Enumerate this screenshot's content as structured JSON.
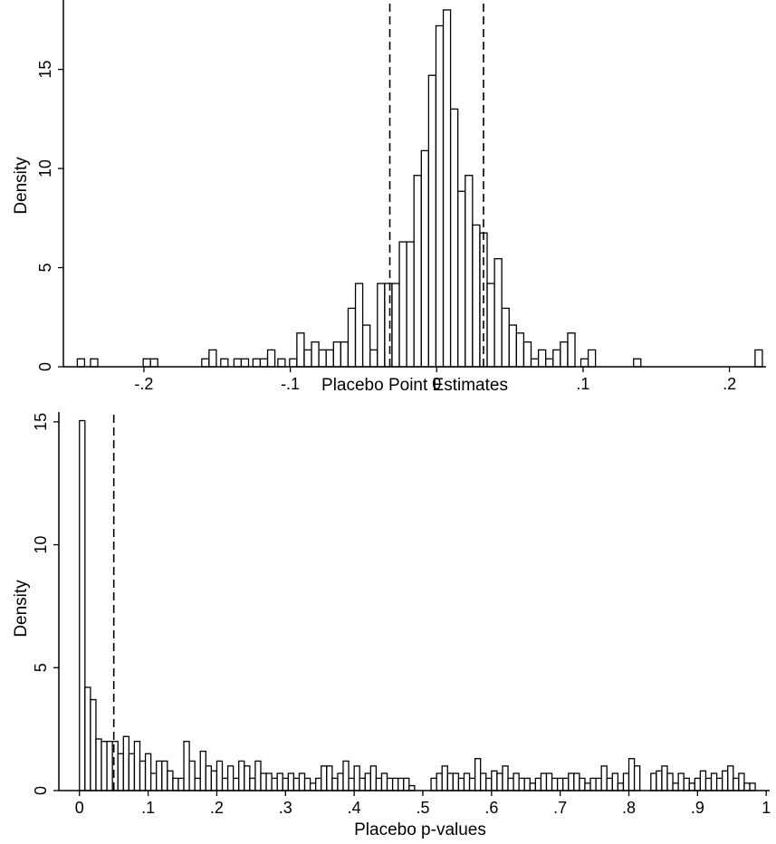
{
  "chart_data": [
    {
      "type": "bar",
      "subtype": "histogram",
      "title": "",
      "xlabel": "Placebo Point Estimates",
      "ylabel": "Density",
      "xlim": [
        -0.255,
        0.225
      ],
      "ylim": [
        0,
        18.5
      ],
      "xticks": [
        -0.2,
        -0.1,
        0,
        0.1,
        0.2
      ],
      "xtick_labels": [
        "-.2",
        "-.1",
        "0",
        ".1",
        ".2"
      ],
      "yticks": [
        0,
        5,
        10,
        15
      ],
      "ytick_labels": [
        "0",
        "5",
        "10",
        "15"
      ],
      "bin_width": 0.00497,
      "vlines": [
        -0.032,
        0.032
      ],
      "grid": false,
      "legend": "none",
      "bins": [
        {
          "x": -0.243,
          "y": 0.4
        },
        {
          "x": -0.234,
          "y": 0.4
        },
        {
          "x": -0.198,
          "y": 0.4
        },
        {
          "x": -0.193,
          "y": 0.4
        },
        {
          "x": -0.158,
          "y": 0.4
        },
        {
          "x": -0.153,
          "y": 0.85
        },
        {
          "x": -0.145,
          "y": 0.4
        },
        {
          "x": -0.136,
          "y": 0.4
        },
        {
          "x": -0.131,
          "y": 0.4
        },
        {
          "x": -0.123,
          "y": 0.4
        },
        {
          "x": -0.118,
          "y": 0.4
        },
        {
          "x": -0.113,
          "y": 0.85
        },
        {
          "x": -0.106,
          "y": 0.4
        },
        {
          "x": -0.098,
          "y": 0.4
        },
        {
          "x": -0.093,
          "y": 1.7
        },
        {
          "x": -0.088,
          "y": 0.85
        },
        {
          "x": -0.083,
          "y": 1.25
        },
        {
          "x": -0.078,
          "y": 0.85
        },
        {
          "x": -0.073,
          "y": 0.85
        },
        {
          "x": -0.068,
          "y": 1.25
        },
        {
          "x": -0.063,
          "y": 1.25
        },
        {
          "x": -0.058,
          "y": 2.95
        },
        {
          "x": -0.053,
          "y": 4.2
        },
        {
          "x": -0.048,
          "y": 2.1
        },
        {
          "x": -0.043,
          "y": 0.85
        },
        {
          "x": -0.038,
          "y": 4.2
        },
        {
          "x": -0.033,
          "y": 4.2
        },
        {
          "x": -0.028,
          "y": 4.2
        },
        {
          "x": -0.023,
          "y": 6.3
        },
        {
          "x": -0.018,
          "y": 6.3
        },
        {
          "x": -0.013,
          "y": 9.65
        },
        {
          "x": -0.008,
          "y": 10.9
        },
        {
          "x": -0.003,
          "y": 14.7
        },
        {
          "x": 0.002,
          "y": 17.2
        },
        {
          "x": 0.007,
          "y": 18.0
        },
        {
          "x": 0.012,
          "y": 13.0
        },
        {
          "x": 0.017,
          "y": 8.85
        },
        {
          "x": 0.022,
          "y": 9.65
        },
        {
          "x": 0.027,
          "y": 7.15
        },
        {
          "x": 0.032,
          "y": 6.75
        },
        {
          "x": 0.037,
          "y": 4.2
        },
        {
          "x": 0.042,
          "y": 5.45
        },
        {
          "x": 0.047,
          "y": 2.95
        },
        {
          "x": 0.052,
          "y": 2.1
        },
        {
          "x": 0.057,
          "y": 1.7
        },
        {
          "x": 0.062,
          "y": 1.25
        },
        {
          "x": 0.067,
          "y": 0.4
        },
        {
          "x": 0.072,
          "y": 0.85
        },
        {
          "x": 0.077,
          "y": 0.4
        },
        {
          "x": 0.082,
          "y": 0.85
        },
        {
          "x": 0.087,
          "y": 1.25
        },
        {
          "x": 0.092,
          "y": 1.7
        },
        {
          "x": 0.101,
          "y": 0.4
        },
        {
          "x": 0.106,
          "y": 0.85
        },
        {
          "x": 0.137,
          "y": 0.4
        },
        {
          "x": 0.22,
          "y": 0.85
        }
      ]
    },
    {
      "type": "bar",
      "subtype": "histogram",
      "title": "",
      "xlabel": "Placebo p-values",
      "ylabel": "Density",
      "xlim": [
        -0.03,
        1.005
      ],
      "ylim": [
        0,
        15.4
      ],
      "xticks": [
        0,
        0.1,
        0.2,
        0.3,
        0.4,
        0.5,
        0.6,
        0.7,
        0.8,
        0.9,
        1
      ],
      "xtick_labels": [
        "0",
        ".1",
        ".2",
        ".3",
        ".4",
        ".5",
        ".6",
        ".7",
        ".8",
        ".9",
        "1"
      ],
      "yticks": [
        0,
        5,
        10,
        15
      ],
      "ytick_labels": [
        "0",
        "5",
        "10",
        "15"
      ],
      "bin_width": 0.00799,
      "vlines": [
        0.05
      ],
      "grid": false,
      "legend": "none",
      "bins": [
        {
          "x": 0.004,
          "y": 15.05
        },
        {
          "x": 0.012,
          "y": 4.2
        },
        {
          "x": 0.02,
          "y": 3.7
        },
        {
          "x": 0.028,
          "y": 2.1
        },
        {
          "x": 0.036,
          "y": 2.0
        },
        {
          "x": 0.044,
          "y": 2.0
        },
        {
          "x": 0.052,
          "y": 2.0
        },
        {
          "x": 0.06,
          "y": 1.5
        },
        {
          "x": 0.068,
          "y": 2.2
        },
        {
          "x": 0.076,
          "y": 1.5
        },
        {
          "x": 0.084,
          "y": 2.0
        },
        {
          "x": 0.092,
          "y": 1.2
        },
        {
          "x": 0.1,
          "y": 1.5
        },
        {
          "x": 0.108,
          "y": 0.7
        },
        {
          "x": 0.116,
          "y": 1.2
        },
        {
          "x": 0.124,
          "y": 1.2
        },
        {
          "x": 0.132,
          "y": 0.8
        },
        {
          "x": 0.14,
          "y": 0.5
        },
        {
          "x": 0.148,
          "y": 0.5
        },
        {
          "x": 0.156,
          "y": 2.0
        },
        {
          "x": 0.164,
          "y": 1.2
        },
        {
          "x": 0.172,
          "y": 0.5
        },
        {
          "x": 0.18,
          "y": 1.6
        },
        {
          "x": 0.188,
          "y": 1.0
        },
        {
          "x": 0.196,
          "y": 0.8
        },
        {
          "x": 0.204,
          "y": 1.2
        },
        {
          "x": 0.212,
          "y": 0.5
        },
        {
          "x": 0.22,
          "y": 1.0
        },
        {
          "x": 0.228,
          "y": 0.5
        },
        {
          "x": 0.236,
          "y": 1.2
        },
        {
          "x": 0.244,
          "y": 1.0
        },
        {
          "x": 0.252,
          "y": 0.5
        },
        {
          "x": 0.26,
          "y": 1.2
        },
        {
          "x": 0.268,
          "y": 0.7
        },
        {
          "x": 0.276,
          "y": 0.7
        },
        {
          "x": 0.284,
          "y": 0.5
        },
        {
          "x": 0.292,
          "y": 0.7
        },
        {
          "x": 0.3,
          "y": 0.5
        },
        {
          "x": 0.308,
          "y": 0.7
        },
        {
          "x": 0.316,
          "y": 0.5
        },
        {
          "x": 0.324,
          "y": 0.7
        },
        {
          "x": 0.332,
          "y": 0.5
        },
        {
          "x": 0.34,
          "y": 0.3
        },
        {
          "x": 0.348,
          "y": 0.5
        },
        {
          "x": 0.356,
          "y": 1.0
        },
        {
          "x": 0.364,
          "y": 1.0
        },
        {
          "x": 0.372,
          "y": 0.5
        },
        {
          "x": 0.38,
          "y": 0.7
        },
        {
          "x": 0.388,
          "y": 1.2
        },
        {
          "x": 0.396,
          "y": 0.5
        },
        {
          "x": 0.404,
          "y": 1.0
        },
        {
          "x": 0.412,
          "y": 0.5
        },
        {
          "x": 0.42,
          "y": 0.7
        },
        {
          "x": 0.428,
          "y": 1.0
        },
        {
          "x": 0.436,
          "y": 0.5
        },
        {
          "x": 0.444,
          "y": 0.7
        },
        {
          "x": 0.452,
          "y": 0.5
        },
        {
          "x": 0.46,
          "y": 0.5
        },
        {
          "x": 0.468,
          "y": 0.5
        },
        {
          "x": 0.476,
          "y": 0.5
        },
        {
          "x": 0.484,
          "y": 0.2
        },
        {
          "x": 0.516,
          "y": 0.5
        },
        {
          "x": 0.524,
          "y": 0.7
        },
        {
          "x": 0.532,
          "y": 1.0
        },
        {
          "x": 0.54,
          "y": 0.7
        },
        {
          "x": 0.548,
          "y": 0.7
        },
        {
          "x": 0.556,
          "y": 0.5
        },
        {
          "x": 0.564,
          "y": 0.7
        },
        {
          "x": 0.572,
          "y": 0.5
        },
        {
          "x": 0.58,
          "y": 1.3
        },
        {
          "x": 0.588,
          "y": 0.7
        },
        {
          "x": 0.596,
          "y": 0.5
        },
        {
          "x": 0.604,
          "y": 0.8
        },
        {
          "x": 0.612,
          "y": 0.7
        },
        {
          "x": 0.62,
          "y": 1.0
        },
        {
          "x": 0.628,
          "y": 0.5
        },
        {
          "x": 0.636,
          "y": 0.7
        },
        {
          "x": 0.644,
          "y": 0.5
        },
        {
          "x": 0.652,
          "y": 0.5
        },
        {
          "x": 0.66,
          "y": 0.3
        },
        {
          "x": 0.668,
          "y": 0.5
        },
        {
          "x": 0.676,
          "y": 0.7
        },
        {
          "x": 0.684,
          "y": 0.7
        },
        {
          "x": 0.692,
          "y": 0.5
        },
        {
          "x": 0.7,
          "y": 0.5
        },
        {
          "x": 0.708,
          "y": 0.5
        },
        {
          "x": 0.716,
          "y": 0.7
        },
        {
          "x": 0.724,
          "y": 0.7
        },
        {
          "x": 0.732,
          "y": 0.5
        },
        {
          "x": 0.74,
          "y": 0.3
        },
        {
          "x": 0.748,
          "y": 0.5
        },
        {
          "x": 0.756,
          "y": 0.5
        },
        {
          "x": 0.764,
          "y": 1.0
        },
        {
          "x": 0.772,
          "y": 0.5
        },
        {
          "x": 0.78,
          "y": 0.7
        },
        {
          "x": 0.788,
          "y": 0.3
        },
        {
          "x": 0.796,
          "y": 0.7
        },
        {
          "x": 0.804,
          "y": 1.3
        },
        {
          "x": 0.812,
          "y": 1.0
        },
        {
          "x": 0.836,
          "y": 0.7
        },
        {
          "x": 0.844,
          "y": 0.8
        },
        {
          "x": 0.852,
          "y": 1.0
        },
        {
          "x": 0.86,
          "y": 0.7
        },
        {
          "x": 0.868,
          "y": 0.3
        },
        {
          "x": 0.876,
          "y": 0.7
        },
        {
          "x": 0.884,
          "y": 0.5
        },
        {
          "x": 0.892,
          "y": 0.3
        },
        {
          "x": 0.9,
          "y": 0.5
        },
        {
          "x": 0.908,
          "y": 0.8
        },
        {
          "x": 0.916,
          "y": 0.5
        },
        {
          "x": 0.924,
          "y": 0.7
        },
        {
          "x": 0.932,
          "y": 0.5
        },
        {
          "x": 0.94,
          "y": 0.8
        },
        {
          "x": 0.948,
          "y": 1.0
        },
        {
          "x": 0.956,
          "y": 0.5
        },
        {
          "x": 0.964,
          "y": 0.7
        },
        {
          "x": 0.972,
          "y": 0.3
        },
        {
          "x": 0.98,
          "y": 0.3
        }
      ]
    }
  ]
}
